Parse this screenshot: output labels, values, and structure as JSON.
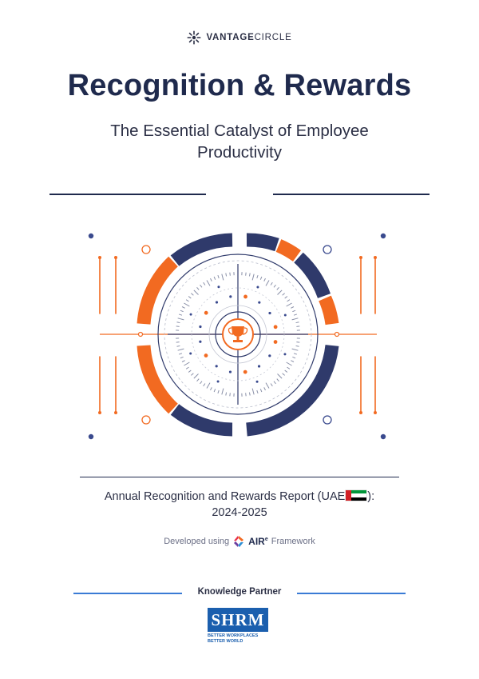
{
  "brand": {
    "name_bold": "VANTAGE",
    "name_thin": "CIRCLE",
    "icon": "vantage-circle-logo-icon"
  },
  "title": "Recognition & Rewards",
  "subtitle_line1": "The Essential Catalyst of Employee",
  "subtitle_line2": "Productivity",
  "report": {
    "line1_prefix": "Annual Recognition and Rewards Report (UAE",
    "line1_suffix": "):",
    "line2": "2024-2025",
    "flag_icon": "uae-flag-icon"
  },
  "framework": {
    "prefix": "Developed using",
    "name": "AIR",
    "name_sup": "e",
    "suffix": "Framework"
  },
  "partner": {
    "label": "Knowledge Partner",
    "logo_text": "SHRM",
    "tagline_line1": "BETTER WORKPLACES",
    "tagline_line2": "BETTER WORLD"
  },
  "colors": {
    "navy": "#1f2a4d",
    "orange": "#f26a21",
    "blue_gray": "#3a4a78"
  }
}
